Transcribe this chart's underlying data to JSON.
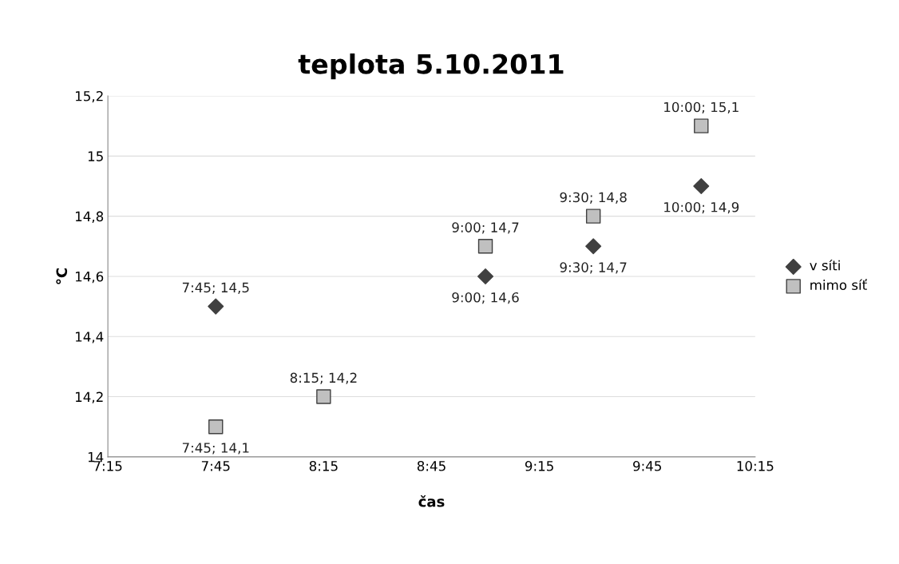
{
  "chart_data": {
    "type": "scatter",
    "title": "teplota 5.10.2011",
    "xlabel": "čas",
    "ylabel": "°C",
    "xlim": [
      7.25,
      10.25
    ],
    "xticks": [
      {
        "value": 7.25,
        "label": "7:15"
      },
      {
        "value": 7.75,
        "label": "7:45"
      },
      {
        "value": 8.25,
        "label": "8:15"
      },
      {
        "value": 8.75,
        "label": "8:45"
      },
      {
        "value": 9.25,
        "label": "9:15"
      },
      {
        "value": 9.75,
        "label": "9:45"
      },
      {
        "value": 10.25,
        "label": "10:15"
      }
    ],
    "ylim": [
      14,
      15.2
    ],
    "yticks": [
      14,
      {
        "value": 14.2,
        "label": "14,2"
      },
      {
        "value": 14.4,
        "label": "14,4"
      },
      {
        "value": 14.6,
        "label": "14,6"
      },
      {
        "value": 14.8,
        "label": "14,8"
      },
      15,
      {
        "value": 15.2,
        "label": "15,2"
      }
    ],
    "grid": "y",
    "legend": "right",
    "series": [
      {
        "name": "v síti",
        "color": "#404040",
        "marker": "diamond",
        "x": [
          7.75,
          9,
          9.5,
          10
        ],
        "values": [
          14.5,
          14.6,
          14.7,
          14.9
        ],
        "value_labels": [
          "7:45; 14,5",
          "9:00; 14,6",
          "9:30; 14,7",
          "10:00; 14,9"
        ]
      },
      {
        "name": "mimo síť",
        "color": "#c0c0c0",
        "marker": "square",
        "x": [
          7.75,
          8.25,
          9,
          9.5,
          10
        ],
        "values": [
          14.1,
          14.2,
          14.7,
          14.8,
          15.1
        ],
        "value_labels": [
          "7:45; 14,1",
          "8:15; 14,2",
          "9:00; 14,7",
          "9:30; 14,8",
          "10:00; 15,1"
        ]
      }
    ]
  }
}
